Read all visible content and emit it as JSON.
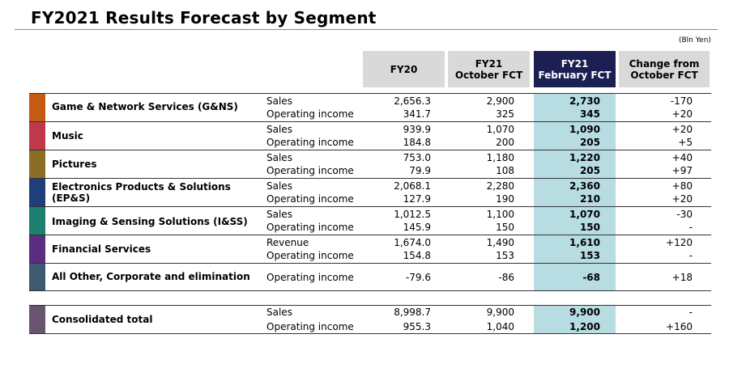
{
  "title": "FY2021 Results Forecast by Segment",
  "unit": "(Bln Yen)",
  "headers": {
    "fy20": "FY20",
    "oct_l1": "FY21",
    "oct_l2": "October FCT",
    "feb_l1": "FY21",
    "feb_l2": "February FCT",
    "chg_l1": "Change from",
    "chg_l2": "October FCT"
  },
  "colors": {
    "gns": "#c55a11",
    "music": "#c0394b",
    "pictures": "#8c6d25",
    "epns": "#1f3f7a",
    "iss": "#1d7f6e",
    "fs": "#5b2d82",
    "other": "#3d5a73",
    "total": "#6b5470",
    "highlight": "#b7dde3",
    "header_navy": "#1b1f52",
    "header_gray": "#d9d9d9"
  },
  "segments": [
    {
      "name": "Game & Network Services (G&NS)",
      "rows": [
        {
          "metric": "Sales",
          "fy20": "2,656.3",
          "oct": "2,900",
          "feb": "2,730",
          "chg": "-170"
        },
        {
          "metric": "Operating income",
          "fy20": "341.7",
          "oct": "325",
          "feb": "345",
          "chg": "+20"
        }
      ]
    },
    {
      "name": "Music",
      "rows": [
        {
          "metric": "Sales",
          "fy20": "939.9",
          "oct": "1,070",
          "feb": "1,090",
          "chg": "+20"
        },
        {
          "metric": "Operating income",
          "fy20": "184.8",
          "oct": "200",
          "feb": "205",
          "chg": "+5"
        }
      ]
    },
    {
      "name": "Pictures",
      "rows": [
        {
          "metric": "Sales",
          "fy20": "753.0",
          "oct": "1,180",
          "feb": "1,220",
          "chg": "+40"
        },
        {
          "metric": "Operating income",
          "fy20": "79.9",
          "oct": "108",
          "feb": "205",
          "chg": "+97"
        }
      ]
    },
    {
      "name_l1": "Electronics Products & Solutions",
      "name_l2": "(EP&S)",
      "rows": [
        {
          "metric": "Sales",
          "fy20": "2,068.1",
          "oct": "2,280",
          "feb": "2,360",
          "chg": "+80"
        },
        {
          "metric": "Operating income",
          "fy20": "127.9",
          "oct": "190",
          "feb": "210",
          "chg": "+20"
        }
      ]
    },
    {
      "name": "Imaging & Sensing Solutions (I&SS)",
      "rows": [
        {
          "metric": "Sales",
          "fy20": "1,012.5",
          "oct": "1,100",
          "feb": "1,070",
          "chg": "-30"
        },
        {
          "metric": "Operating income",
          "fy20": "145.9",
          "oct": "150",
          "feb": "150",
          "chg": "-"
        }
      ]
    },
    {
      "name": "Financial Services",
      "rows": [
        {
          "metric": "Revenue",
          "fy20": "1,674.0",
          "oct": "1,490",
          "feb": "1,610",
          "chg": "+120"
        },
        {
          "metric": "Operating income",
          "fy20": "154.8",
          "oct": "153",
          "feb": "153",
          "chg": "-"
        }
      ]
    },
    {
      "name": "All Other, Corporate and elimination",
      "rows": [
        {
          "metric": "Operating income",
          "fy20": "-79.6",
          "oct": "-86",
          "feb": "-68",
          "chg": "+18"
        }
      ]
    }
  ],
  "total": {
    "name": "Consolidated total",
    "rows": [
      {
        "metric": "Sales",
        "fy20": "8,998.7",
        "oct": "9,900",
        "feb": "9,900",
        "chg": "-"
      },
      {
        "metric": "Operating income",
        "fy20": "955.3",
        "oct": "1,040",
        "feb": "1,200",
        "chg": "+160"
      }
    ]
  }
}
